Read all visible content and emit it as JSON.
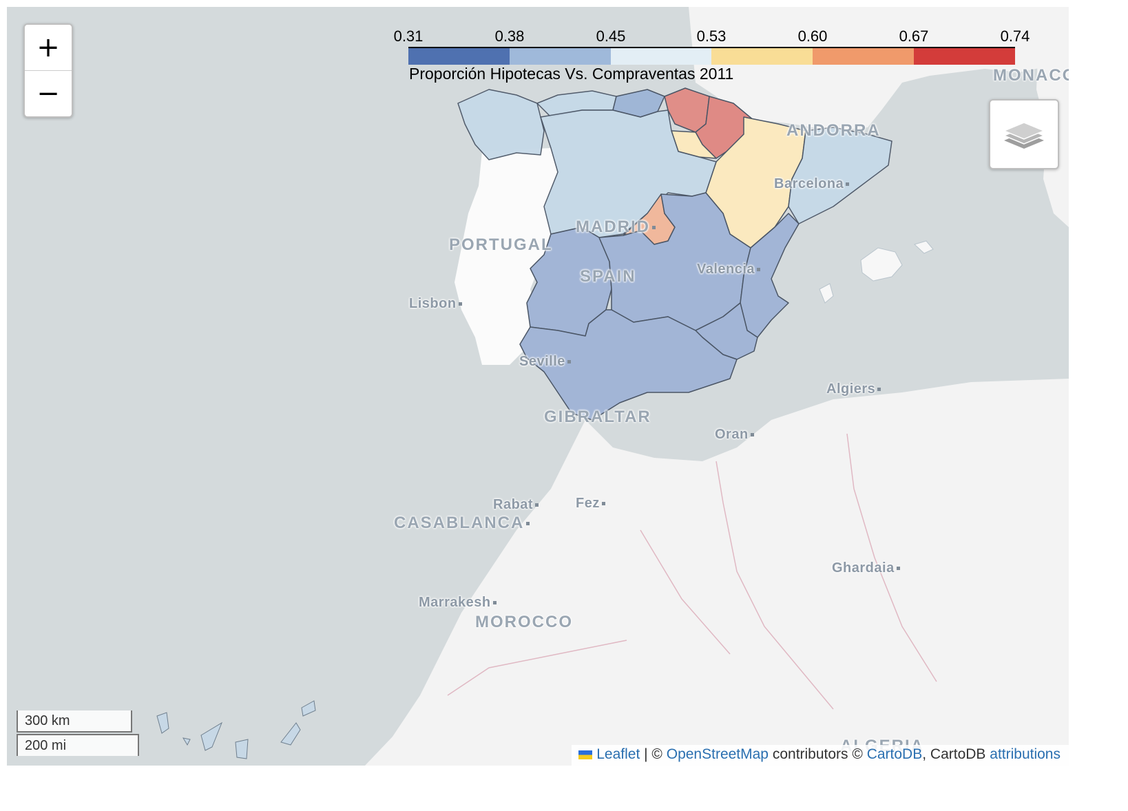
{
  "legend": {
    "ticks": [
      "0.31",
      "0.38",
      "0.45",
      "0.53",
      "0.60",
      "0.67",
      "0.74"
    ],
    "caption": "Proporción Hipotecas Vs. Compraventas 2011",
    "colors": [
      "#4f71b0",
      "#9fb9da",
      "#e3eef5",
      "#f9dd96",
      "#f09a6b",
      "#d33c3a"
    ]
  },
  "controls": {
    "zoom_in": "+",
    "zoom_out": "−"
  },
  "scale": {
    "km": "300 km",
    "mi": "200 mi"
  },
  "attribution": {
    "leaflet": "Leaflet",
    "sep1": " | © ",
    "osm": "OpenStreetMap",
    "mid": " contributors © ",
    "carto": "CartoDB",
    "tail": ", CartoDB ",
    "attr": "attributions"
  },
  "places": {
    "monaco": "MONACO",
    "andorra": "ANDORRA",
    "barcelona": "Barcelona",
    "madrid": "MADRID",
    "portugal": "PORTUGAL",
    "spain": "SPAIN",
    "valencia": "Valencia",
    "lisbon": "Lisbon",
    "seville": "Seville",
    "gibraltar": "GIBRALTAR",
    "algiers": "Algiers",
    "oran": "Oran",
    "rabat": "Rabat",
    "fez": "Fez",
    "casablanca": "CASABLANCA",
    "ghardaia": "Ghardaia",
    "marrakesh": "Marrakesh",
    "morocco": "MOROCCO",
    "algeria": "ALGERIA"
  },
  "colors": {
    "sea": "#d4dadc",
    "land": "#f2f2f2",
    "land_white": "#fafafa",
    "border": "#d7a8b4"
  }
}
